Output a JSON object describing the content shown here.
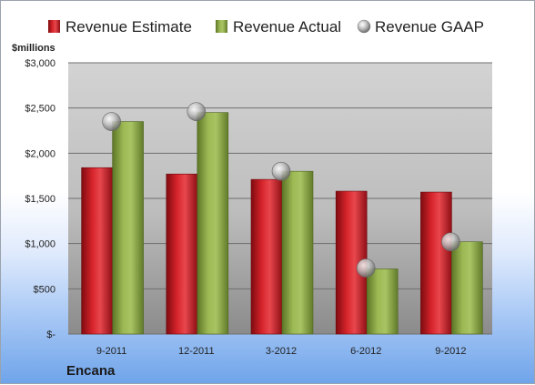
{
  "company": "Encana",
  "chart_data": {
    "type": "bar",
    "unit_label": "$millions",
    "categories": [
      "9-2011",
      "12-2011",
      "3-2012",
      "6-2012",
      "9-2012"
    ],
    "series": [
      {
        "name": "Revenue Estimate",
        "type": "bar",
        "color": "#c8171f",
        "values": [
          1840,
          1770,
          1710,
          1580,
          1570
        ]
      },
      {
        "name": "Revenue Actual",
        "type": "bar",
        "color": "#8faa45",
        "values": [
          2350,
          2450,
          1800,
          720,
          1020
        ]
      },
      {
        "name": "Revenue GAAP",
        "type": "marker",
        "color": "#b8b8b8",
        "values": [
          2350,
          2460,
          1800,
          730,
          1020
        ]
      }
    ],
    "ylim": [
      0,
      3000
    ],
    "yticks": [
      {
        "value": 0,
        "label": "$-"
      },
      {
        "value": 500,
        "label": "$500"
      },
      {
        "value": 1000,
        "label": "$1,000"
      },
      {
        "value": 1500,
        "label": "$1,500"
      },
      {
        "value": 2000,
        "label": "$2,000"
      },
      {
        "value": 2500,
        "label": "$2,500"
      },
      {
        "value": 3000,
        "label": "$3,000"
      }
    ],
    "grid": true,
    "legend_position": "top"
  }
}
